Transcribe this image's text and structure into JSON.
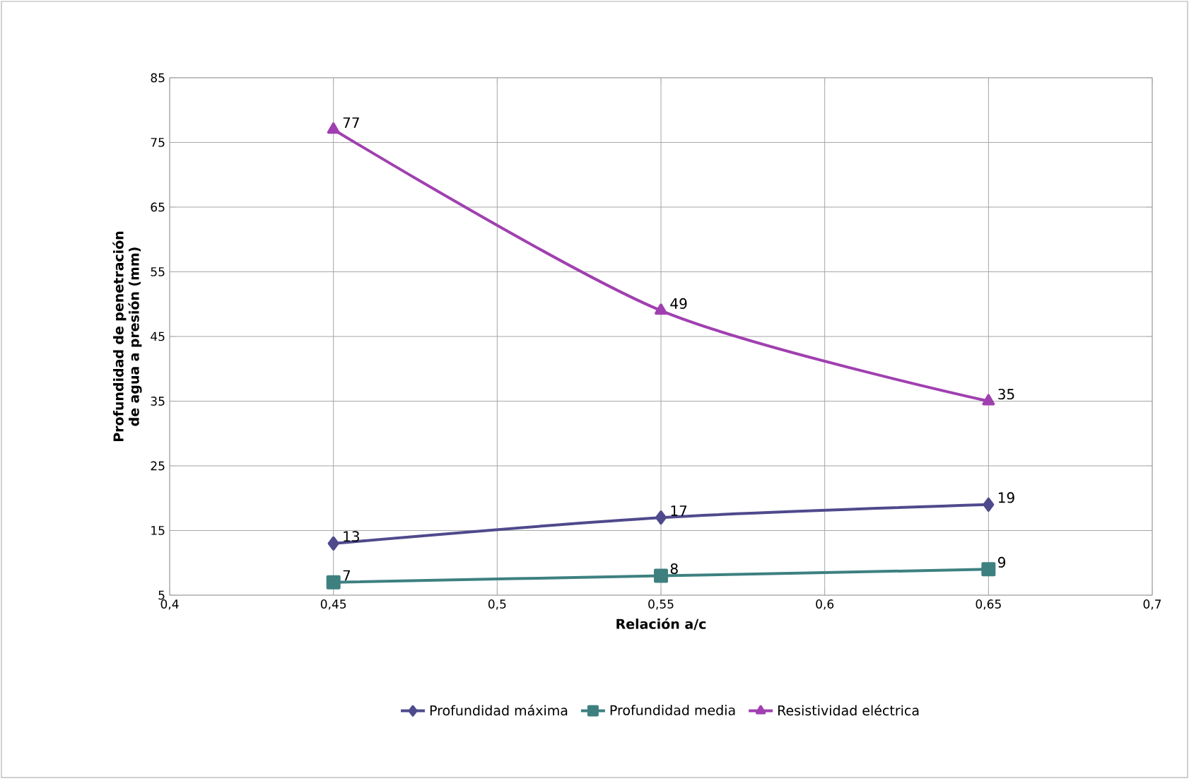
{
  "chart_data": {
    "type": "line",
    "xlabel": "Relación a/c",
    "ylabel": "Profundidad de penetración de agua a presión (mm)",
    "x": [
      0.45,
      0.55,
      0.65
    ],
    "series": [
      {
        "name": "Profundidad máxima",
        "color": "#4f4a8c",
        "marker": "diamond",
        "values": [
          13,
          17,
          19
        ]
      },
      {
        "name": "Profundidad media",
        "color": "#3e8080",
        "marker": "square",
        "values": [
          7,
          8,
          9
        ]
      },
      {
        "name": "Resistividad eléctrica",
        "color": "#a040b0",
        "marker": "triangle",
        "values": [
          77,
          49,
          35
        ]
      }
    ],
    "xlim": [
      0.4,
      0.7
    ],
    "xticks": [
      {
        "value": 0.4,
        "label": "0,4"
      },
      {
        "value": 0.45,
        "label": "0,45"
      },
      {
        "value": 0.5,
        "label": "0,5"
      },
      {
        "value": 0.55,
        "label": "0,55"
      },
      {
        "value": 0.6,
        "label": "0,6"
      },
      {
        "value": 0.65,
        "label": "0,65"
      },
      {
        "value": 0.7,
        "label": "0,7"
      }
    ],
    "ylim": [
      5,
      85
    ],
    "yticks": [
      5,
      15,
      25,
      35,
      45,
      55,
      65,
      75,
      85
    ],
    "grid": true,
    "legend": "bottom",
    "data_labels": true,
    "line_style": "solid"
  }
}
